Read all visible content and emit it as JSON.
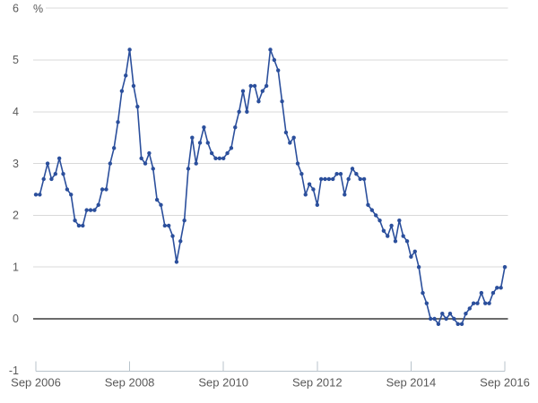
{
  "chart_data": {
    "type": "line",
    "unit_label": "%",
    "x_start": "Sep 2006",
    "x_end": "Sep 2016",
    "frequency": "monthly",
    "x_ticks": [
      "Sep 2006",
      "Sep 2008",
      "Sep 2010",
      "Sep 2012",
      "Sep 2014",
      "Sep 2016"
    ],
    "y_ticks": [
      6,
      5,
      4,
      3,
      2,
      1,
      0,
      -1
    ],
    "ylim": [
      -1,
      6
    ],
    "grid": "horizontal",
    "legend": "none",
    "marker": "circle",
    "series": [
      {
        "values": [
          2.4,
          2.4,
          2.7,
          3.0,
          2.7,
          2.8,
          3.1,
          2.8,
          2.5,
          2.4,
          1.9,
          1.8,
          1.8,
          2.1,
          2.1,
          2.1,
          2.2,
          2.5,
          2.5,
          3.0,
          3.3,
          3.8,
          4.4,
          4.7,
          5.2,
          4.5,
          4.1,
          3.1,
          3.0,
          3.2,
          2.9,
          2.3,
          2.2,
          1.8,
          1.8,
          1.6,
          1.1,
          1.5,
          1.9,
          2.9,
          3.5,
          3.0,
          3.4,
          3.7,
          3.4,
          3.2,
          3.1,
          3.1,
          3.1,
          3.2,
          3.3,
          3.7,
          4.0,
          4.4,
          4.0,
          4.5,
          4.5,
          4.2,
          4.4,
          4.5,
          5.2,
          5.0,
          4.8,
          4.2,
          3.6,
          3.4,
          3.5,
          3.0,
          2.8,
          2.4,
          2.6,
          2.5,
          2.2,
          2.7,
          2.7,
          2.7,
          2.7,
          2.8,
          2.8,
          2.4,
          2.7,
          2.9,
          2.8,
          2.7,
          2.7,
          2.2,
          2.1,
          2.0,
          1.9,
          1.7,
          1.6,
          1.8,
          1.5,
          1.9,
          1.6,
          1.5,
          1.2,
          1.3,
          1.0,
          0.5,
          0.3,
          0.0,
          0.0,
          -0.1,
          0.1,
          0.0,
          0.1,
          0.0,
          -0.1,
          -0.1,
          0.1,
          0.2,
          0.3,
          0.3,
          0.5,
          0.3,
          0.3,
          0.5,
          0.6,
          0.6,
          1.0
        ]
      }
    ],
    "colors": {
      "line": "#2b4f9c",
      "marker": "#2b4f9c",
      "grid": "#d9d9d9",
      "zero_line": "#6b6b6b",
      "axis": "#b8c3cb",
      "text": "#595959"
    }
  }
}
